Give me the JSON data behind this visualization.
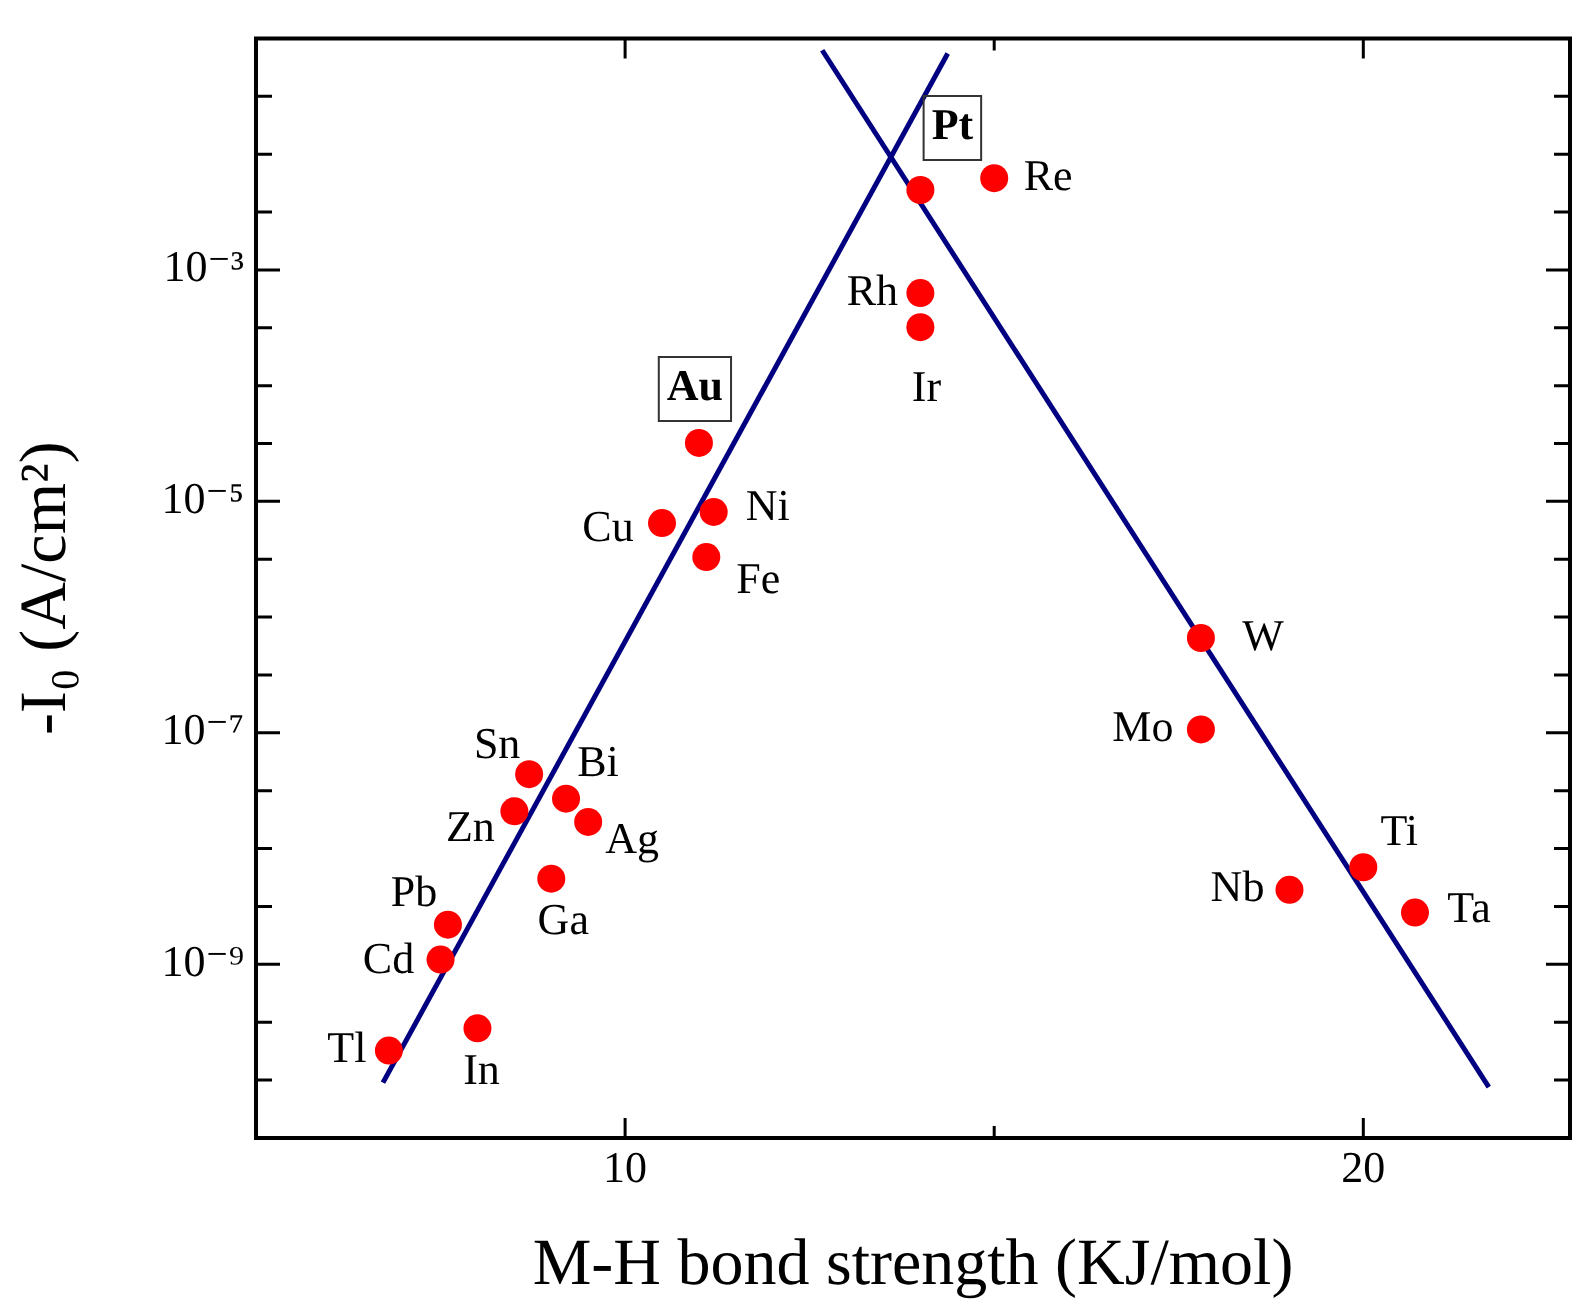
{
  "chart_data": {
    "type": "scatter",
    "xlabel": "M-H bond strength (KJ/mol)",
    "ylabel": "-I₀ (A/cm²)",
    "log": "y",
    "grid": false,
    "legend": false,
    "marker": "circle",
    "xlim": [
      5,
      22.8
    ],
    "xticks": [
      10,
      {
        "value": 15,
        "label": null
      },
      20
    ],
    "ylim": [
      3.16e-11,
      0.1
    ],
    "yticks": [
      {
        "value": 3.16e-11,
        "label": null
      },
      {
        "value": 1e-10,
        "label": null
      },
      {
        "value": 3.16e-10,
        "label": null
      },
      {
        "value": 1e-09,
        "label": "10⁻⁹"
      },
      {
        "value": 3.16e-09,
        "label": null
      },
      {
        "value": 1e-08,
        "label": null
      },
      {
        "value": 3.16e-08,
        "label": null
      },
      {
        "value": 1e-07,
        "label": "10⁻⁷"
      },
      {
        "value": 3.16e-07,
        "label": null
      },
      {
        "value": 1e-06,
        "label": null
      },
      {
        "value": 3.16e-06,
        "label": null
      },
      {
        "value": 1e-05,
        "label": "10⁻⁵"
      },
      {
        "value": 3.16e-05,
        "label": null
      },
      {
        "value": 0.0001,
        "label": null
      },
      {
        "value": 0.000316,
        "label": null
      },
      {
        "value": 0.001,
        "label": "10⁻³"
      },
      {
        "value": 0.00316,
        "label": null
      },
      {
        "value": 0.01,
        "label": null
      },
      {
        "value": 0.0316,
        "label": null
      },
      {
        "value": 0.1,
        "label": null
      }
    ],
    "series": [
      {
        "type": "scatter",
        "color": "#ff0000",
        "x": [
          14.0,
          15.0,
          14.0,
          14.0,
          11.0,
          10.5,
          11.2,
          11.1,
          8.7,
          9.2,
          8.5,
          9.5,
          9.0,
          7.6,
          7.5,
          8.0,
          6.8,
          17.8,
          17.8,
          20.0,
          19.0,
          20.7
        ],
        "values": [
          0.0049,
          0.0062,
          0.00063,
          0.00032,
          3.2e-05,
          6.5e-06,
          8.1e-06,
          3.3e-06,
          4.4e-08,
          2.7e-08,
          2.1e-08,
          1.7e-08,
          5.5e-09,
          2.2e-09,
          1.1e-09,
          2.8e-10,
          1.8e-10,
          6.6e-07,
          1.07e-07,
          6.9e-09,
          4.4e-09,
          2.8e-09
        ],
        "value_labels": [
          "Pt",
          "Re",
          "Rh",
          "Ir",
          "Au",
          "Cu",
          "Ni",
          "Fe",
          "Sn",
          "Bi",
          "Zn",
          "Ag",
          "Ga",
          "Pb",
          "Cd",
          "In",
          "Tl",
          "W",
          "Mo",
          "Ti",
          "Nb",
          "Ta"
        ]
      },
      {
        "type": "line",
        "color": "#000080",
        "marker": "none",
        "x": [
          6.72,
          14.37
        ],
        "values": [
          9.5e-11,
          0.074
        ]
      },
      {
        "type": "line",
        "color": "#000080",
        "marker": "none",
        "x": [
          12.67,
          21.7
        ],
        "values": [
          0.079,
          8.7e-11
        ]
      }
    ]
  }
}
